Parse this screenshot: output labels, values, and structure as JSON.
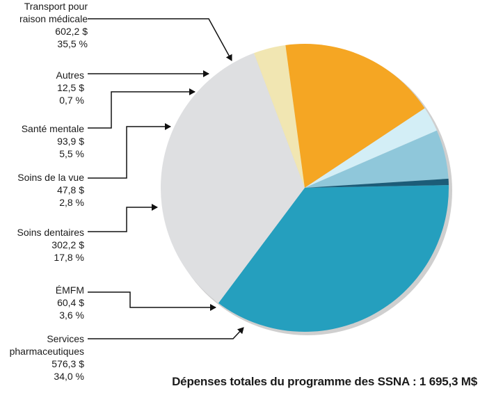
{
  "chart_data": {
    "type": "pie",
    "slices": [
      {
        "label": "Transport pour raison médicale",
        "amount": "602,2 $",
        "percent": "35,5 %",
        "value": 35.5,
        "color": "#259fbe"
      },
      {
        "label": "Services pharmaceutiques",
        "amount": "576,3 $",
        "percent": "34,0 %",
        "value": 34.0,
        "color": "#dedfe1"
      },
      {
        "label": "ÉMFM",
        "amount": "60,4 $",
        "percent": "3,6 %",
        "value": 3.6,
        "color": "#f1e6b2"
      },
      {
        "label": "Soins dentaires",
        "amount": "302,2 $",
        "percent": "17,8 %",
        "value": 17.8,
        "color": "#f5a623"
      },
      {
        "label": "Soins de la vue",
        "amount": "47,8 $",
        "percent": "2,8 %",
        "value": 2.8,
        "color": "#d3eef6"
      },
      {
        "label": "Santé mentale",
        "amount": "93,9 $",
        "percent": "5,5 %",
        "value": 5.5,
        "color": "#8fc7da"
      },
      {
        "label": "Autres",
        "amount": "12,5 $",
        "percent": "0,7 %",
        "value": 0.7,
        "color": "#1c5c78"
      }
    ],
    "total_label": "Dépenses totales du programme des SSNA : 1 695,3 M$"
  },
  "labels": {
    "transport": {
      "line1": "Transport pour",
      "line2": "raison médicale",
      "amount": "602,2 $",
      "percent": "35,5 %"
    },
    "autres": {
      "line1": "Autres",
      "amount": "12,5 $",
      "percent": "0,7 %"
    },
    "sante": {
      "line1": "Santé mentale",
      "amount": "93,9 $",
      "percent": "5,5 %"
    },
    "vue": {
      "line1": "Soins de la vue",
      "amount": "47,8 $",
      "percent": "2,8 %"
    },
    "dentaires": {
      "line1": "Soins dentaires",
      "amount": "302,2 $",
      "percent": "17,8 %"
    },
    "emfm": {
      "line1": "ÉMFM",
      "amount": "60,4 $",
      "percent": "3,6 %"
    },
    "pharma": {
      "line1": "Services",
      "line2": "pharmaceutiques",
      "amount": "576,3 $",
      "percent": "34,0 %"
    }
  },
  "footer": {
    "total": "Dépenses totales du programme des SSNA : 1 695,3 M$"
  },
  "colors": {
    "connector": "#111111",
    "shadow": "#cfcfcf"
  }
}
